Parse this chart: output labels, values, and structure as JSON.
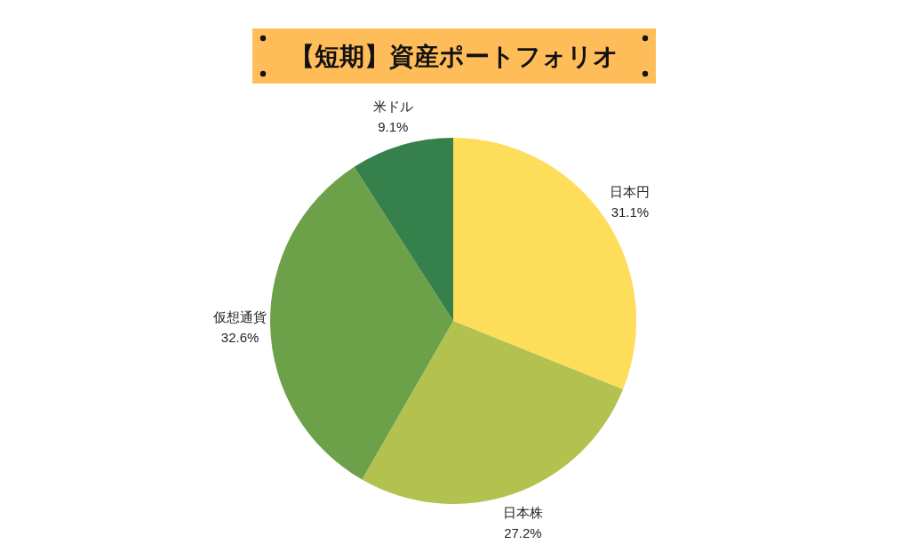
{
  "chart_data": {
    "type": "pie",
    "title": "【短期】資産ポートフォリオ",
    "categories": [
      "日本円",
      "日本株",
      "仮想通貨",
      "米ドル"
    ],
    "values": [
      31.1,
      27.2,
      32.6,
      9.1
    ],
    "colors": [
      "#fedd5a",
      "#b3c24f",
      "#6ca14a",
      "#35804b"
    ],
    "value_labels": [
      "31.1%",
      "27.2%",
      "32.6%",
      "9.1%"
    ]
  }
}
